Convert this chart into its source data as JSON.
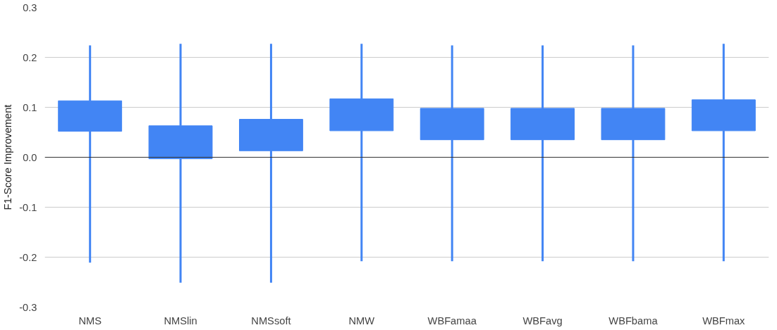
{
  "chart_data": {
    "type": "candlestick",
    "ylabel": "F1-Score Improvement",
    "categories": [
      "NMS",
      "NMSlin",
      "NMSsoft",
      "NMW",
      "WBFamaa",
      "WBFavg",
      "WBFbama",
      "WBFmax"
    ],
    "ohlc": [
      [
        0.052,
        0.224,
        -0.211,
        0.113
      ],
      [
        -0.003,
        0.227,
        -0.251,
        0.063
      ],
      [
        0.013,
        0.227,
        -0.251,
        0.076
      ],
      [
        0.053,
        0.227,
        -0.208,
        0.117
      ],
      [
        0.035,
        0.224,
        -0.208,
        0.098
      ],
      [
        0.035,
        0.224,
        -0.208,
        0.098
      ],
      [
        0.035,
        0.224,
        -0.208,
        0.098
      ],
      [
        0.053,
        0.227,
        -0.208,
        0.115
      ]
    ],
    "color": "#4285f4",
    "ylim": [
      -0.3,
      0.3
    ],
    "yticks": [
      -0.3,
      -0.2,
      -0.1,
      {
        "value": 0,
        "label": "0.0"
      },
      0.1,
      0.2,
      0.3
    ],
    "grid": "y",
    "ref_lines": [
      {
        "axis": "y",
        "value": 0,
        "color": "#333333"
      }
    ]
  }
}
